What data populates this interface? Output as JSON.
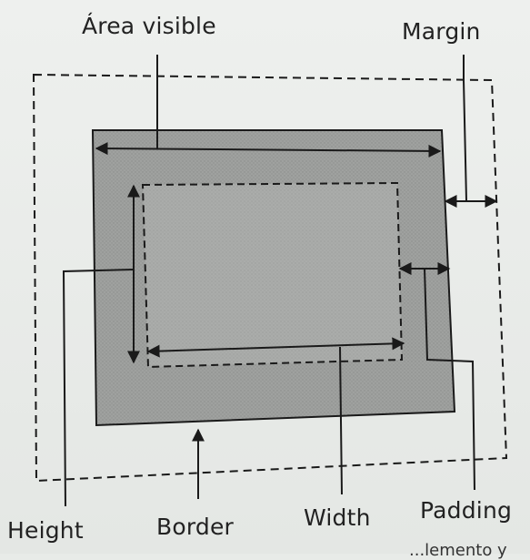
{
  "labels": {
    "area_visible": "Área visible",
    "margin": "Margin",
    "height": "Height",
    "border": "Border",
    "width": "Width",
    "padding": "Padding"
  },
  "footer_text": "...lemento y",
  "colors": {
    "box_fill": "#9b9d9b",
    "content_fill": "#a6a8a6",
    "line": "#1a1a1a",
    "page_bg": "#e8ebe8"
  }
}
